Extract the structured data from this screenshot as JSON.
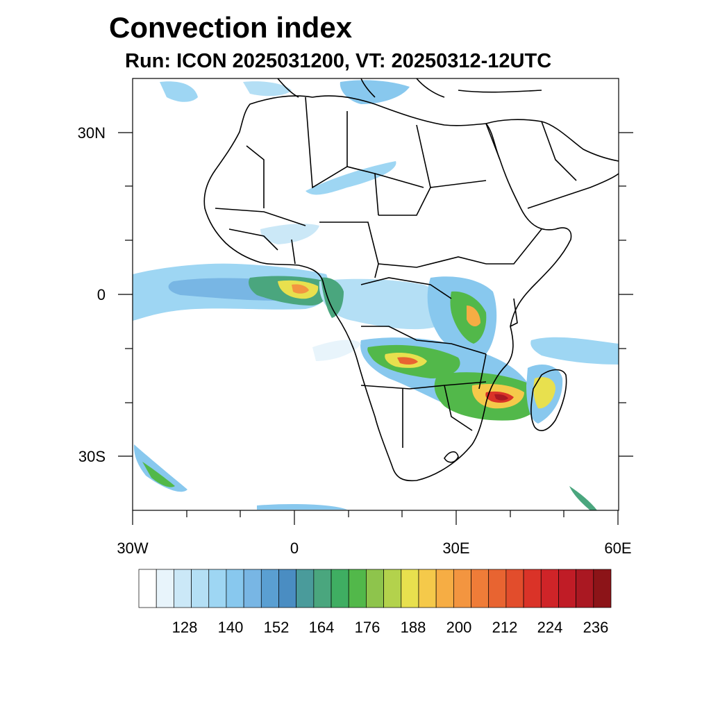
{
  "title": "Convection index",
  "subtitle": "Run: ICON 2025031200,  VT: 20250312-12UTC",
  "axes": {
    "lon_labels": [
      "30W",
      "0",
      "30E",
      "60E"
    ],
    "lat_labels": [
      "30N",
      "0",
      "30S"
    ],
    "lon_range": [
      -30,
      60
    ],
    "lat_range": [
      -40,
      40
    ]
  },
  "colorbar": {
    "labels": [
      "128",
      "140",
      "152",
      "164",
      "176",
      "188",
      "200",
      "212",
      "224",
      "236"
    ],
    "colors": [
      "#ffffff",
      "#e8f4fb",
      "#cbe8f7",
      "#b4dff5",
      "#9ed6f3",
      "#88c8ee",
      "#78b6e4",
      "#5a9fd2",
      "#4a8dc2",
      "#4a9b9b",
      "#4aa67e",
      "#3fae62",
      "#52b84a",
      "#8ec44c",
      "#b3d24c",
      "#e8e04e",
      "#f5c94a",
      "#f6ad44",
      "#f39540",
      "#ef7c38",
      "#e86431",
      "#e24d2c",
      "#da3328",
      "#cf2428",
      "#c01c26",
      "#aa1822",
      "#8c1418"
    ]
  }
}
